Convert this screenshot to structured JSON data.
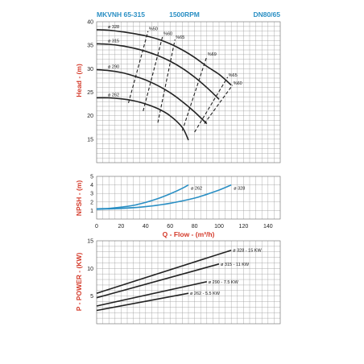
{
  "header": {
    "model": "MKVNH 65-315",
    "speed": "1500RPM",
    "size": "DN80/65"
  },
  "colors": {
    "head_curve": "#222222",
    "npsh_curve": "#2a8fc4",
    "title": "#2a8fc4",
    "axis_title": "#d43a2a",
    "grid": "#9a9a9a"
  },
  "chart_data": [
    {
      "type": "line",
      "name": "head",
      "ylabel": "Head - (m)",
      "xlim": [
        0,
        150
      ],
      "ylim": [
        10,
        40
      ],
      "yticks": [
        15,
        20,
        25,
        30,
        35,
        40
      ],
      "grid": true,
      "series": [
        {
          "name": "ø 328",
          "x": [
            0,
            10,
            20,
            30,
            40,
            50,
            60,
            70,
            80,
            90,
            100,
            110
          ],
          "y": [
            38.3,
            38.2,
            37.9,
            37.5,
            37.0,
            36.3,
            35.3,
            34.0,
            32.4,
            30.5,
            28.8,
            26.5
          ]
        },
        {
          "name": "ø 315",
          "x": [
            0,
            10,
            20,
            30,
            40,
            50,
            60,
            70,
            80,
            90,
            100
          ],
          "y": [
            35.3,
            35.2,
            34.9,
            34.4,
            33.7,
            32.8,
            31.6,
            30.1,
            28.2,
            26.0,
            23.5
          ]
        },
        {
          "name": "ø 290",
          "x": [
            0,
            10,
            20,
            30,
            40,
            50,
            60,
            70,
            80,
            90
          ],
          "y": [
            29.8,
            29.6,
            29.2,
            28.5,
            27.6,
            26.4,
            24.9,
            23.0,
            20.8,
            18.3
          ]
        },
        {
          "name": "ø 262",
          "x": [
            0,
            10,
            20,
            30,
            40,
            50,
            60,
            70,
            75
          ],
          "y": [
            23.8,
            23.8,
            23.6,
            23.2,
            22.5,
            21.5,
            20.0,
            17.5,
            14.8
          ]
        }
      ],
      "efficiency_lines": [
        {
          "name": "%50",
          "x": [
            26,
            42
          ],
          "y": [
            22.7,
            38.0
          ]
        },
        {
          "name": "%60",
          "x": [
            38,
            54
          ],
          "y": [
            21.0,
            37.0
          ]
        },
        {
          "name": "%65",
          "x": [
            50,
            64
          ],
          "y": [
            18.5,
            36.2
          ]
        },
        {
          "name": "%69",
          "x": [
            70,
            90
          ],
          "y": [
            16.8,
            32.6
          ]
        },
        {
          "name": "%65",
          "x": [
            80,
            107
          ],
          "y": [
            16.5,
            28.2
          ]
        },
        {
          "name": "%60",
          "x": [
            88,
            111
          ],
          "y": [
            18.3,
            26.5
          ]
        }
      ]
    },
    {
      "type": "line",
      "name": "npsh",
      "ylabel": "NPSH - (m)",
      "xlabel": "Q - Flow - (m³/h)",
      "xlim": [
        0,
        150
      ],
      "ylim": [
        0,
        5
      ],
      "xticks": [
        0,
        20,
        40,
        60,
        80,
        100,
        120,
        140
      ],
      "yticks": [
        1,
        2,
        3,
        4,
        5
      ],
      "grid": true,
      "series": [
        {
          "name": "ø 262",
          "x": [
            0,
            10,
            20,
            30,
            40,
            50,
            60,
            70,
            75
          ],
          "y": [
            1.2,
            1.25,
            1.4,
            1.6,
            1.95,
            2.4,
            2.95,
            3.6,
            4.0
          ]
        },
        {
          "name": "ø 328",
          "x": [
            0,
            20,
            40,
            60,
            80,
            90,
            100,
            110
          ],
          "y": [
            1.15,
            1.25,
            1.45,
            1.85,
            2.45,
            2.9,
            3.4,
            4.0
          ]
        }
      ]
    },
    {
      "type": "line",
      "name": "power",
      "ylabel": "P - POWER - (KW)",
      "xlim": [
        0,
        150
      ],
      "ylim": [
        0,
        15
      ],
      "yticks": [
        5,
        10,
        15
      ],
      "grid": true,
      "series": [
        {
          "name": "ø 328 - 15 KW",
          "x": [
            0,
            110
          ],
          "y": [
            5.5,
            13.3
          ]
        },
        {
          "name": "ø 315 - 11 KW",
          "x": [
            0,
            100
          ],
          "y": [
            4.7,
            10.8
          ]
        },
        {
          "name": "ø 290 - 7.5 KW",
          "x": [
            0,
            90
          ],
          "y": [
            3.2,
            7.6
          ]
        },
        {
          "name": "ø 262 - 5.5 KW",
          "x": [
            0,
            75
          ],
          "y": [
            2.4,
            5.5
          ]
        }
      ]
    }
  ]
}
